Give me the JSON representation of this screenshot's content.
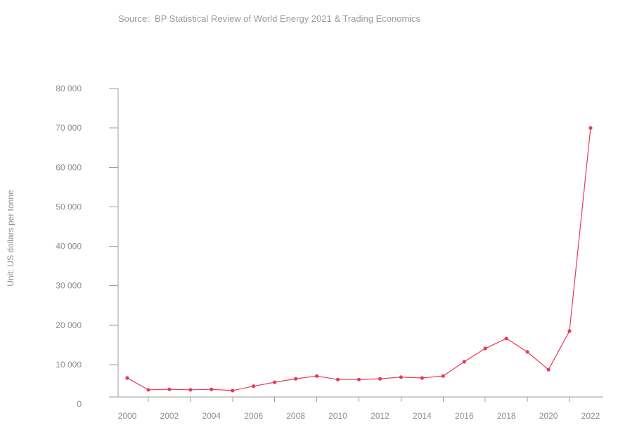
{
  "chart_data": {
    "type": "line",
    "source": "Source:  BP Statistical Review of World Energy 2021 & Trading Economics",
    "ylabel": "Unit: US dollars per tonne",
    "x": [
      2000,
      2001,
      2002,
      2003,
      2004,
      2005,
      2006,
      2007,
      2008,
      2009,
      2010,
      2011,
      2012,
      2013,
      2014,
      2015,
      2016,
      2017,
      2018,
      2019,
      2020,
      2021,
      2022
    ],
    "x_tick_labels": [
      "2000",
      "2002",
      "2004",
      "2006",
      "2008",
      "2010",
      "2012",
      "2014",
      "2016",
      "2018",
      "2020",
      "2022"
    ],
    "y_ticks": [
      0,
      10000,
      20000,
      30000,
      40000,
      50000,
      60000,
      70000,
      80000
    ],
    "y_tick_labels": [
      "0",
      "10 000",
      "20 000",
      "30 000",
      "40 000",
      "50 000",
      "60 000",
      "70 000",
      "80 000"
    ],
    "ylim": [
      0,
      80000
    ],
    "series": [
      {
        "values": [
          6600,
          3600,
          3700,
          3600,
          3700,
          3400,
          4500,
          5500,
          6400,
          7100,
          6200,
          6200,
          6400,
          6800,
          6600,
          7100,
          10700,
          14100,
          16600,
          13200,
          8700,
          18500,
          70000
        ]
      }
    ],
    "markers": true,
    "grid": false,
    "legend": "none",
    "colors": {
      "series": "#e8395b",
      "text": "#8e8e8e",
      "source": "#9a9a9a",
      "axis": "#9d9d9d"
    }
  }
}
